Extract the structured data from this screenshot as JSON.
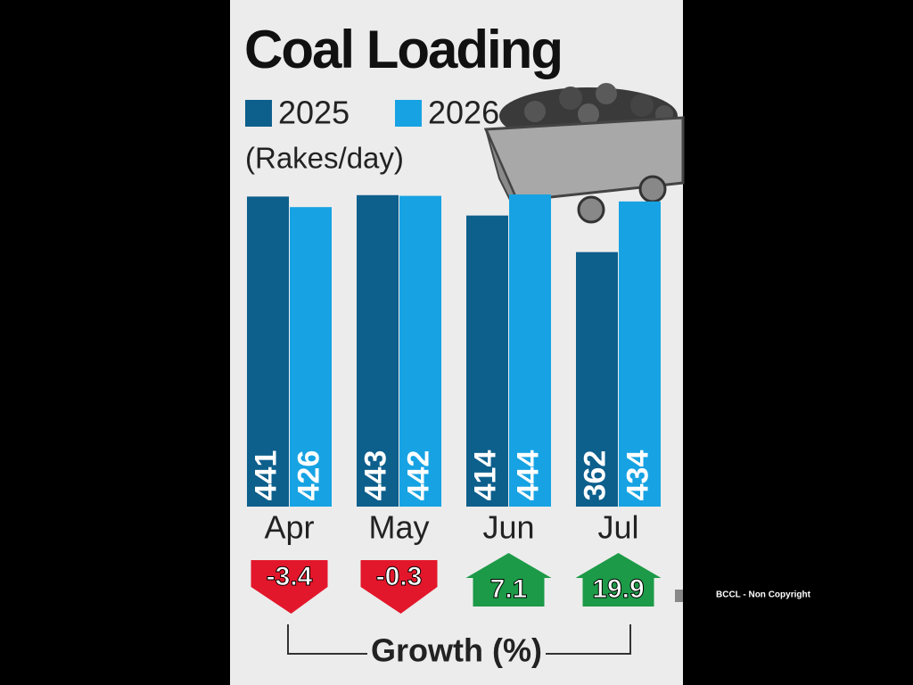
{
  "chart_data": {
    "type": "bar",
    "title": "Coal Loading",
    "unit_label": "(Rakes/day)",
    "categories": [
      "Apr",
      "May",
      "Jun",
      "Jul"
    ],
    "series": [
      {
        "name": "2025",
        "color": "#0d5f8c",
        "values": [
          441,
          443,
          414,
          362
        ]
      },
      {
        "name": "2026",
        "color": "#17a3e3",
        "values": [
          426,
          442,
          444,
          434
        ]
      }
    ],
    "growth": {
      "label": "Growth (%)",
      "values": [
        -3.4,
        -0.3,
        7.1,
        19.9
      ],
      "up_color": "#1c9a47",
      "down_color": "#e3172b"
    }
  },
  "credit": "BCCL - Non Copyright"
}
